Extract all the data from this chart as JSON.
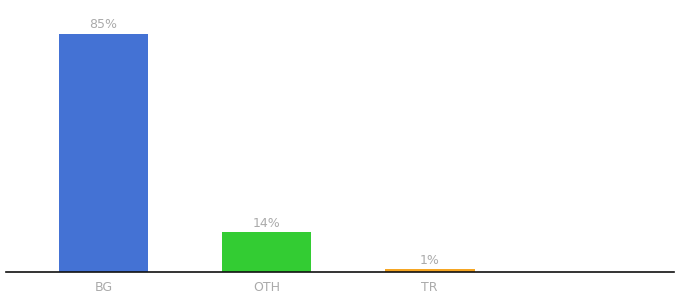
{
  "categories": [
    "BG",
    "OTH",
    "TR"
  ],
  "values": [
    85,
    14,
    1
  ],
  "bar_colors": [
    "#4472d4",
    "#33cc33",
    "#f5a623"
  ],
  "labels": [
    "85%",
    "14%",
    "1%"
  ],
  "background_color": "#ffffff",
  "ylim": [
    0,
    95
  ],
  "label_color": "#aaaaaa",
  "label_fontsize": 9,
  "tick_fontsize": 9,
  "tick_color": "#aaaaaa",
  "bar_width": 0.55,
  "x_positions": [
    0,
    1,
    2
  ],
  "xlim": [
    -0.6,
    3.5
  ]
}
